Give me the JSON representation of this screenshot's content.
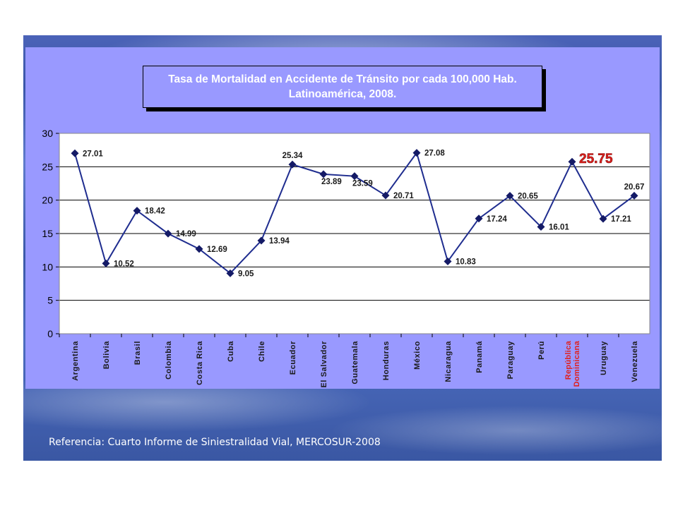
{
  "slide": {
    "title_line1": "Tasa de Mortalidad en Accidente de Tránsito  por cada 100,000 Hab.",
    "title_line2": "Latinoamérica, 2008.",
    "reference": "Referencia: Cuarto Informe de Siniestralidad Vial, MERCOSUR-2008"
  },
  "colors": {
    "line": "#1f2d8f",
    "marker": "#141a66",
    "highlight": "#e0201c",
    "panel": "#9999ff"
  },
  "chart_data": {
    "type": "line",
    "categories": [
      "Argentina",
      "Bolivia",
      "Brasil",
      "Colombia",
      "Costa Rica",
      "Cuba",
      "Chile",
      "Ecuador",
      "El Salvador",
      "Guatemala",
      "Honduras",
      "México",
      "Nicaragua",
      "Panamá",
      "Paraguay",
      "Perú",
      "República Dominicana",
      "Uruguay",
      "Venezuela"
    ],
    "values": [
      27.01,
      10.52,
      18.42,
      14.99,
      12.69,
      9.05,
      13.94,
      25.34,
      23.89,
      23.59,
      20.71,
      27.08,
      10.83,
      17.24,
      20.65,
      16.01,
      25.75,
      17.21,
      20.67
    ],
    "value_labels": [
      "27.01",
      "10.52",
      "18.42",
      "14.99",
      "12.69",
      "9.05",
      "13.94",
      "25.34",
      "23.89",
      "23.59",
      "20.71",
      "27.08",
      "10.83",
      "17.24",
      "20.65",
      "16.01",
      "25.75",
      "17.21",
      "20.67"
    ],
    "highlight_category": "República Dominicana",
    "ylim": [
      0,
      30
    ],
    "yticks": [
      0,
      5,
      10,
      15,
      20,
      25,
      30
    ],
    "grid": true,
    "title": "",
    "xlabel": "",
    "ylabel": ""
  }
}
